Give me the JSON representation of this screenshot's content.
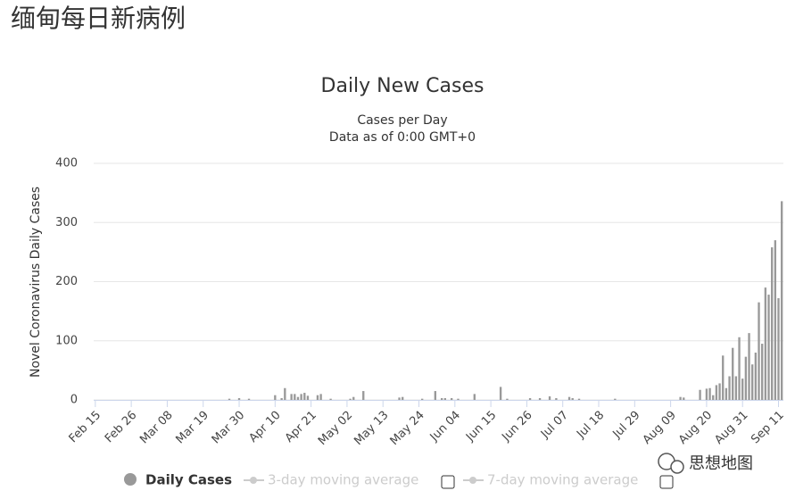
{
  "page_title": "缅甸每日新病例",
  "watermark": "思想地图",
  "chart_data": {
    "type": "bar",
    "title": "Daily New Cases",
    "subtitle": [
      "Cases per Day",
      "Data as of 0:00 GMT+0"
    ],
    "y_label": "Novel Coronavirus Daily Cases",
    "ylim": [
      0,
      400
    ],
    "yticks": [
      0,
      100,
      200,
      300,
      400
    ],
    "grid": true,
    "legend_inactive": [
      "3-day moving average",
      "7-day moving average"
    ],
    "categories": [
      "Feb 15",
      null,
      null,
      null,
      null,
      null,
      null,
      null,
      null,
      null,
      null,
      "Feb 26",
      null,
      null,
      null,
      null,
      null,
      null,
      null,
      null,
      null,
      null,
      "Mar 08",
      null,
      null,
      null,
      null,
      null,
      null,
      null,
      null,
      null,
      null,
      "Mar 19",
      null,
      null,
      null,
      null,
      null,
      null,
      null,
      null,
      null,
      null,
      "Mar 30",
      null,
      null,
      null,
      null,
      null,
      null,
      null,
      null,
      null,
      null,
      "Apr 10",
      null,
      null,
      null,
      null,
      null,
      null,
      null,
      null,
      null,
      null,
      "Apr 21",
      null,
      null,
      null,
      null,
      null,
      null,
      null,
      null,
      null,
      null,
      "May 02",
      null,
      null,
      null,
      null,
      null,
      null,
      null,
      null,
      null,
      null,
      "May 13",
      null,
      null,
      null,
      null,
      null,
      null,
      null,
      null,
      null,
      null,
      "May 24",
      null,
      null,
      null,
      null,
      null,
      null,
      null,
      null,
      null,
      null,
      "Jun 04",
      null,
      null,
      null,
      null,
      null,
      null,
      null,
      null,
      null,
      null,
      "Jun 15",
      null,
      null,
      null,
      null,
      null,
      null,
      null,
      null,
      null,
      null,
      "Jun 26",
      null,
      null,
      null,
      null,
      null,
      null,
      null,
      null,
      null,
      null,
      "Jul 07",
      null,
      null,
      null,
      null,
      null,
      null,
      null,
      null,
      null,
      null,
      "Jul 18",
      null,
      null,
      null,
      null,
      null,
      null,
      null,
      null,
      null,
      null,
      "Jul 29",
      null,
      null,
      null,
      null,
      null,
      null,
      null,
      null,
      null,
      null,
      "Aug 09",
      null,
      null,
      null,
      null,
      null,
      null,
      null,
      null,
      null,
      null,
      "Aug 20",
      null,
      null,
      null,
      null,
      null,
      null,
      null,
      null,
      null,
      null,
      "Aug 31",
      null,
      null,
      null,
      null,
      null,
      null,
      null,
      null,
      null,
      null,
      "Sep 11",
      null
    ],
    "series": [
      {
        "name": "Daily Cases",
        "color": "#999999",
        "values": [
          0,
          0,
          0,
          0,
          0,
          0,
          0,
          0,
          0,
          0,
          0,
          0,
          0,
          0,
          0,
          0,
          0,
          0,
          0,
          0,
          0,
          0,
          0,
          0,
          0,
          0,
          0,
          0,
          0,
          0,
          0,
          0,
          0,
          0,
          0,
          0,
          0,
          0,
          0,
          0,
          0,
          2,
          0,
          0,
          3,
          0,
          0,
          2,
          0,
          0,
          0,
          0,
          0,
          0,
          0,
          8,
          0,
          3,
          20,
          0,
          10,
          10,
          5,
          10,
          12,
          7,
          0,
          0,
          8,
          10,
          0,
          0,
          2,
          0,
          0,
          0,
          0,
          0,
          2,
          5,
          0,
          0,
          15,
          0,
          0,
          0,
          0,
          0,
          0,
          0,
          0,
          0,
          0,
          4,
          5,
          0,
          0,
          0,
          0,
          0,
          2,
          0,
          0,
          0,
          15,
          0,
          3,
          3,
          0,
          3,
          0,
          2,
          0,
          0,
          0,
          0,
          10,
          0,
          0,
          0,
          0,
          0,
          0,
          0,
          22,
          0,
          2,
          0,
          0,
          0,
          0,
          0,
          0,
          3,
          0,
          0,
          3,
          0,
          0,
          6,
          0,
          3,
          0,
          0,
          0,
          5,
          3,
          0,
          2,
          0,
          0,
          0,
          0,
          0,
          0,
          0,
          0,
          0,
          0,
          2,
          0,
          0,
          0,
          0,
          0,
          0,
          0,
          0,
          0,
          0,
          0,
          0,
          0,
          0,
          0,
          0,
          0,
          0,
          0,
          5,
          4,
          0,
          0,
          0,
          0,
          17,
          0,
          19,
          20,
          8,
          25,
          28,
          75,
          20,
          40,
          88,
          40,
          106,
          36,
          73,
          113,
          60,
          80,
          165,
          95,
          190,
          178,
          258,
          270,
          172,
          336
        ]
      }
    ]
  }
}
